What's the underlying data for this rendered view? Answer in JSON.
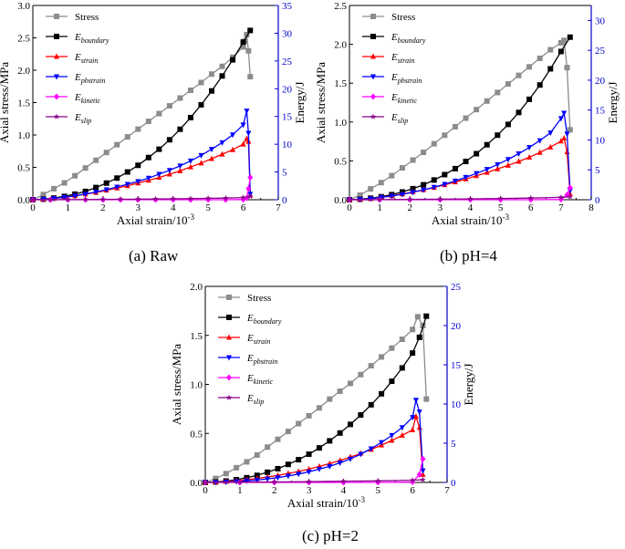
{
  "figure": {
    "captions": [
      "(a) Raw",
      "(b) pH=4",
      "(c) pH=2"
    ]
  },
  "colors": {
    "Stress": "#8c8c8c",
    "E_boundary": "#000000",
    "E_strain": "#ff0000",
    "E_pbstrain": "#0000ff",
    "E_kinetic": "#ff00ff",
    "E_slip": "#8b008b",
    "right_axis": "#0000cc"
  },
  "legend_entries": [
    {
      "key": "Stress",
      "base": "Stress",
      "sub": ""
    },
    {
      "key": "E_boundary",
      "base": "E",
      "sub": "boundary"
    },
    {
      "key": "E_strain",
      "base": "E",
      "sub": "strain"
    },
    {
      "key": "E_pbstrain",
      "base": "E",
      "sub": "pbstrain"
    },
    {
      "key": "E_kinetic",
      "base": "E",
      "sub": "kinetic"
    },
    {
      "key": "E_slip",
      "base": "E",
      "sub": "slip"
    }
  ],
  "chart_data": [
    {
      "type": "line",
      "panel": "(a) Raw",
      "xlabel": "Axial strain/10-3",
      "xlabel_base": "Axial strain/10",
      "xlabel_exp": "-3",
      "ylabel": "Axial stress/MPa",
      "y2label": "Energy/J",
      "xlim": [
        0,
        7
      ],
      "xticks": [
        0,
        1,
        2,
        3,
        4,
        5,
        6,
        7
      ],
      "ylim": [
        0,
        3.0
      ],
      "yticks": [
        "0.0",
        "0.5",
        "1.0",
        "1.5",
        "2.0",
        "2.5",
        "3.0"
      ],
      "y2lim": [
        0,
        35
      ],
      "y2ticks": [
        0,
        5,
        10,
        15,
        20,
        25,
        30,
        35
      ],
      "legend": "top-left",
      "series": [
        {
          "name": "Stress",
          "axis": "left",
          "x": [
            0,
            0.3,
            0.6,
            0.9,
            1.2,
            1.5,
            1.8,
            2.1,
            2.4,
            2.7,
            3.0,
            3.3,
            3.6,
            3.9,
            4.2,
            4.5,
            4.8,
            5.1,
            5.4,
            5.7,
            6.0,
            6.05,
            6.1,
            6.15,
            6.2
          ],
          "y": [
            0,
            0.08,
            0.17,
            0.26,
            0.37,
            0.49,
            0.61,
            0.73,
            0.85,
            0.97,
            1.09,
            1.21,
            1.33,
            1.45,
            1.57,
            1.69,
            1.81,
            1.94,
            2.06,
            2.2,
            2.36,
            2.45,
            2.55,
            2.3,
            1.9
          ]
        },
        {
          "name": "E_boundary",
          "axis": "right",
          "x": [
            0,
            0.3,
            0.6,
            0.9,
            1.2,
            1.5,
            1.8,
            2.1,
            2.4,
            2.7,
            3.0,
            3.3,
            3.6,
            3.9,
            4.2,
            4.5,
            4.8,
            5.1,
            5.4,
            5.7,
            6.0,
            6.2
          ],
          "y": [
            0,
            0.1,
            0.3,
            0.6,
            1.0,
            1.5,
            2.2,
            3.0,
            3.9,
            5.0,
            6.2,
            7.6,
            9.1,
            10.8,
            12.7,
            14.8,
            17.1,
            19.6,
            22.3,
            25.2,
            28.4,
            30.5
          ]
        },
        {
          "name": "E_strain",
          "axis": "right",
          "x": [
            0,
            0.3,
            0.6,
            0.9,
            1.2,
            1.5,
            1.8,
            2.1,
            2.4,
            2.7,
            3.0,
            3.3,
            3.6,
            3.9,
            4.2,
            4.5,
            4.8,
            5.1,
            5.4,
            5.7,
            6.0,
            6.1,
            6.15,
            6.2
          ],
          "y": [
            0,
            0.1,
            0.25,
            0.45,
            0.7,
            1.0,
            1.3,
            1.7,
            2.1,
            2.5,
            3.0,
            3.5,
            4.0,
            4.6,
            5.2,
            5.9,
            6.6,
            7.4,
            8.2,
            9.0,
            10.0,
            11.0,
            10.5,
            0.8
          ]
        },
        {
          "name": "E_pbstrain",
          "axis": "right",
          "x": [
            0,
            0.3,
            0.6,
            0.9,
            1.2,
            1.5,
            1.8,
            2.1,
            2.4,
            2.7,
            3.0,
            3.3,
            3.6,
            3.9,
            4.2,
            4.5,
            4.8,
            5.1,
            5.4,
            5.7,
            6.0,
            6.1,
            6.15,
            6.2
          ],
          "y": [
            0,
            0.1,
            0.25,
            0.45,
            0.7,
            1.0,
            1.4,
            1.8,
            2.3,
            2.8,
            3.3,
            3.9,
            4.6,
            5.3,
            6.1,
            7.0,
            8.0,
            9.1,
            10.3,
            11.7,
            13.5,
            16.0,
            12.0,
            1.0
          ]
        },
        {
          "name": "E_kinetic",
          "axis": "right",
          "x": [
            0,
            0.5,
            1,
            1.5,
            2,
            2.5,
            3,
            3.5,
            4,
            4.5,
            5,
            5.5,
            6,
            6.1,
            6.15,
            6.2
          ],
          "y": [
            0,
            0,
            0,
            0,
            0,
            0,
            0,
            0,
            0,
            0,
            0,
            0,
            0.05,
            0.3,
            2.0,
            4.0
          ]
        },
        {
          "name": "E_slip",
          "axis": "right",
          "x": [
            0,
            0.5,
            1,
            1.5,
            2,
            2.5,
            3,
            3.5,
            4,
            4.5,
            5,
            5.5,
            6,
            6.2
          ],
          "y": [
            0,
            0.01,
            0.02,
            0.04,
            0.06,
            0.08,
            0.1,
            0.13,
            0.16,
            0.2,
            0.25,
            0.3,
            0.4,
            0.6
          ]
        }
      ]
    },
    {
      "type": "line",
      "panel": "(b) pH=4",
      "xlabel": "Axial strain/10-3",
      "xlabel_base": "Axial strain/10",
      "xlabel_exp": "-3",
      "ylabel": "Axial stress/MPa",
      "y2label": "Energy/J",
      "xlim": [
        0,
        8
      ],
      "xticks": [
        0,
        1,
        2,
        3,
        4,
        5,
        6,
        7,
        8
      ],
      "ylim": [
        0,
        2.5
      ],
      "yticks": [
        "0.0",
        "0.5",
        "1.0",
        "1.5",
        "2.0",
        "2.5"
      ],
      "y2lim": [
        0,
        32.5
      ],
      "y2ticks": [
        0,
        5,
        10,
        15,
        20,
        25,
        30
      ],
      "legend": "top-left",
      "series": [
        {
          "name": "Stress",
          "axis": "left",
          "x": [
            0,
            0.35,
            0.7,
            1.05,
            1.4,
            1.75,
            2.1,
            2.45,
            2.8,
            3.15,
            3.5,
            3.85,
            4.2,
            4.55,
            4.9,
            5.25,
            5.6,
            5.95,
            6.3,
            6.65,
            7.0,
            7.1,
            7.2,
            7.3
          ],
          "y": [
            0,
            0.06,
            0.14,
            0.22,
            0.31,
            0.41,
            0.51,
            0.61,
            0.72,
            0.83,
            0.94,
            1.05,
            1.16,
            1.27,
            1.38,
            1.49,
            1.6,
            1.71,
            1.82,
            1.93,
            2.02,
            2.05,
            1.7,
            0.9
          ]
        },
        {
          "name": "E_boundary",
          "axis": "right",
          "x": [
            0,
            0.35,
            0.7,
            1.05,
            1.4,
            1.75,
            2.1,
            2.45,
            2.8,
            3.15,
            3.5,
            3.85,
            4.2,
            4.55,
            4.9,
            5.25,
            5.6,
            5.95,
            6.3,
            6.65,
            7.0,
            7.3
          ],
          "y": [
            0,
            0.08,
            0.25,
            0.5,
            0.85,
            1.3,
            1.85,
            2.5,
            3.3,
            4.2,
            5.2,
            6.4,
            7.7,
            9.2,
            10.8,
            12.6,
            14.6,
            16.8,
            19.2,
            21.9,
            24.8,
            27.2
          ]
        },
        {
          "name": "E_strain",
          "axis": "right",
          "x": [
            0,
            0.35,
            0.7,
            1.05,
            1.4,
            1.75,
            2.1,
            2.45,
            2.8,
            3.15,
            3.5,
            3.85,
            4.2,
            4.55,
            4.9,
            5.25,
            5.6,
            5.95,
            6.3,
            6.65,
            7.0,
            7.1,
            7.2,
            7.3
          ],
          "y": [
            0,
            0.06,
            0.2,
            0.4,
            0.65,
            0.95,
            1.3,
            1.65,
            2.05,
            2.5,
            2.95,
            3.45,
            4.0,
            4.55,
            5.15,
            5.75,
            6.4,
            7.1,
            7.9,
            8.8,
            9.8,
            10.3,
            8.0,
            1.0
          ]
        },
        {
          "name": "E_pbstrain",
          "axis": "right",
          "x": [
            0,
            0.35,
            0.7,
            1.05,
            1.4,
            1.75,
            2.1,
            2.45,
            2.8,
            3.15,
            3.5,
            3.85,
            4.2,
            4.55,
            4.9,
            5.25,
            5.6,
            5.95,
            6.3,
            6.65,
            7.0,
            7.1,
            7.2,
            7.3
          ],
          "y": [
            0,
            0.06,
            0.18,
            0.38,
            0.62,
            0.9,
            1.25,
            1.65,
            2.1,
            2.6,
            3.15,
            3.75,
            4.4,
            5.1,
            5.9,
            6.75,
            7.7,
            8.75,
            9.9,
            11.2,
            13.6,
            14.5,
            11.0,
            1.5
          ]
        },
        {
          "name": "E_kinetic",
          "axis": "right",
          "x": [
            0,
            1,
            2,
            3,
            4,
            5,
            6,
            7,
            7.2,
            7.3
          ],
          "y": [
            0,
            0,
            0,
            0,
            0,
            0,
            0,
            0.05,
            0.8,
            2.0
          ]
        },
        {
          "name": "E_slip",
          "axis": "right",
          "x": [
            0,
            1,
            2,
            3,
            4,
            5,
            6,
            7,
            7.3
          ],
          "y": [
            0,
            0.02,
            0.05,
            0.09,
            0.14,
            0.2,
            0.28,
            0.4,
            0.5
          ]
        }
      ]
    },
    {
      "type": "line",
      "panel": "(c) pH=2",
      "xlabel": "Axial strain/10-3",
      "xlabel_base": "Axial strain/10",
      "xlabel_exp": "-3",
      "ylabel": "Axial stress/MPa",
      "y2label": "Energy/J",
      "xlim": [
        0,
        7
      ],
      "xticks": [
        0,
        1,
        2,
        3,
        4,
        5,
        6,
        7
      ],
      "ylim": [
        0,
        2.0
      ],
      "yticks": [
        "0.0",
        "0.5",
        "1.0",
        "1.5",
        "2.0"
      ],
      "y2lim": [
        0,
        25
      ],
      "y2ticks": [
        0,
        5,
        10,
        15,
        20,
        25
      ],
      "legend": "top-left",
      "series": [
        {
          "name": "Stress",
          "axis": "left",
          "x": [
            0,
            0.3,
            0.6,
            0.9,
            1.2,
            1.5,
            1.8,
            2.1,
            2.4,
            2.7,
            3.0,
            3.3,
            3.6,
            3.9,
            4.2,
            4.5,
            4.8,
            5.1,
            5.4,
            5.7,
            6.0,
            6.15,
            6.3,
            6.4
          ],
          "y": [
            0,
            0.04,
            0.09,
            0.15,
            0.21,
            0.28,
            0.36,
            0.44,
            0.52,
            0.6,
            0.68,
            0.76,
            0.85,
            0.93,
            1.01,
            1.1,
            1.19,
            1.28,
            1.37,
            1.46,
            1.56,
            1.69,
            1.6,
            0.85
          ]
        },
        {
          "name": "E_boundary",
          "axis": "right",
          "x": [
            0,
            0.3,
            0.6,
            0.9,
            1.2,
            1.5,
            1.8,
            2.1,
            2.4,
            2.7,
            3.0,
            3.3,
            3.6,
            3.9,
            4.2,
            4.5,
            4.8,
            5.1,
            5.4,
            5.7,
            6.0,
            6.2,
            6.4
          ],
          "y": [
            0,
            0.06,
            0.18,
            0.35,
            0.6,
            0.9,
            1.3,
            1.75,
            2.3,
            2.9,
            3.6,
            4.4,
            5.3,
            6.3,
            7.4,
            8.6,
            9.9,
            11.3,
            12.9,
            14.6,
            16.5,
            18.5,
            21.2
          ]
        },
        {
          "name": "E_strain",
          "axis": "right",
          "x": [
            0,
            0.3,
            0.6,
            0.9,
            1.2,
            1.5,
            1.8,
            2.1,
            2.4,
            2.7,
            3.0,
            3.3,
            3.6,
            3.9,
            4.2,
            4.5,
            4.8,
            5.1,
            5.4,
            5.7,
            6.0,
            6.1,
            6.2,
            6.3
          ],
          "y": [
            0,
            0.04,
            0.12,
            0.22,
            0.35,
            0.5,
            0.7,
            0.9,
            1.15,
            1.4,
            1.7,
            2.05,
            2.4,
            2.8,
            3.25,
            3.7,
            4.2,
            4.75,
            5.35,
            6.0,
            6.7,
            8.4,
            7.0,
            1.0
          ]
        },
        {
          "name": "E_pbstrain",
          "axis": "right",
          "x": [
            0,
            0.3,
            0.6,
            0.9,
            1.2,
            1.5,
            1.8,
            2.1,
            2.4,
            2.7,
            3.0,
            3.3,
            3.6,
            3.9,
            4.2,
            4.5,
            4.8,
            5.1,
            5.4,
            5.7,
            6.0,
            6.1,
            6.2,
            6.3
          ],
          "y": [
            0,
            0.02,
            0.06,
            0.12,
            0.2,
            0.3,
            0.45,
            0.62,
            0.83,
            1.07,
            1.35,
            1.7,
            2.05,
            2.5,
            3.0,
            3.6,
            4.3,
            5.1,
            6.0,
            7.0,
            8.3,
            10.5,
            9.0,
            1.5
          ]
        },
        {
          "name": "E_kinetic",
          "axis": "right",
          "x": [
            0,
            1,
            2,
            3,
            4,
            5,
            6,
            6.2,
            6.3
          ],
          "y": [
            0,
            0,
            0,
            0,
            0,
            0,
            0.05,
            1.0,
            3.0
          ]
        },
        {
          "name": "E_slip",
          "axis": "right",
          "x": [
            0,
            1,
            2,
            3,
            4,
            5,
            6,
            6.3
          ],
          "y": [
            0,
            0.03,
            0.06,
            0.1,
            0.15,
            0.2,
            0.28,
            0.35
          ]
        }
      ]
    }
  ]
}
